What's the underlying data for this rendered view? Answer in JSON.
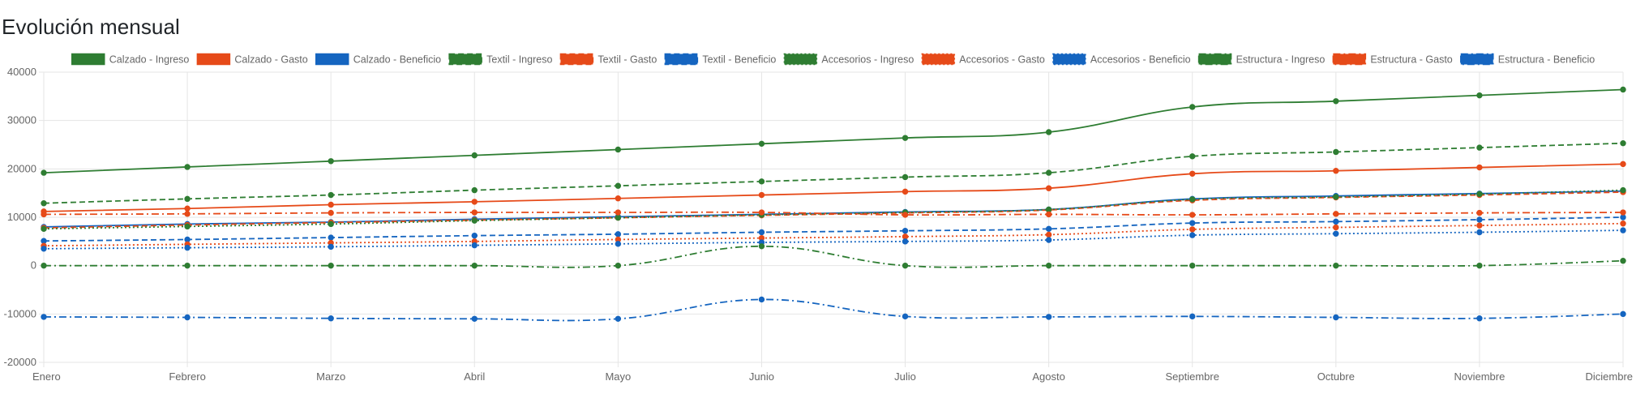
{
  "title": "Evolución mensual",
  "chart_data": {
    "type": "line",
    "categories": [
      "Enero",
      "Febrero",
      "Marzo",
      "Abril",
      "Mayo",
      "Junio",
      "Julio",
      "Agosto",
      "Septiembre",
      "Octubre",
      "Noviembre",
      "Diciembre"
    ],
    "ylim": [
      -20000,
      40000
    ],
    "yticks": [
      40000,
      30000,
      20000,
      10000,
      0,
      -10000,
      -20000
    ],
    "ytick_labels": [
      "40000",
      "30000",
      "20000",
      "10000",
      "0",
      "-10000",
      "-20000"
    ],
    "grid": true,
    "legend_position": "top",
    "series": [
      {
        "name": "Calzado - Ingreso",
        "color": "#2e7d32",
        "dash": "solid",
        "values": [
          19200,
          20400,
          21600,
          22800,
          24000,
          25200,
          26400,
          27600,
          32800,
          34000,
          35200,
          36400
        ]
      },
      {
        "name": "Calzado - Gasto",
        "color": "#e64a19",
        "dash": "solid",
        "values": [
          11200,
          11800,
          12600,
          13200,
          13900,
          14600,
          15300,
          16000,
          19000,
          19600,
          20300,
          21000
        ]
      },
      {
        "name": "Calzado - Beneficio",
        "color": "#1565c0",
        "dash": "solid",
        "values": [
          8000,
          8600,
          9000,
          9600,
          10100,
          10600,
          11100,
          11600,
          13800,
          14400,
          14900,
          15400
        ]
      },
      {
        "name": "Textil - Ingreso",
        "color": "#2e7d32",
        "dash": "dashed",
        "values": [
          12900,
          13800,
          14600,
          15600,
          16500,
          17400,
          18300,
          19200,
          22600,
          23500,
          24400,
          25300
        ]
      },
      {
        "name": "Textil - Gasto",
        "color": "#e64a19",
        "dash": "dashed",
        "values": [
          7800,
          8400,
          8900,
          9400,
          9900,
          10400,
          10900,
          11500,
          13500,
          14100,
          14600,
          15200
        ]
      },
      {
        "name": "Textil - Beneficio",
        "color": "#1565c0",
        "dash": "dashed",
        "values": [
          5100,
          5400,
          5800,
          6200,
          6500,
          6900,
          7200,
          7600,
          8800,
          9100,
          9500,
          10000
        ]
      },
      {
        "name": "Accesorios - Ingreso",
        "color": "#2e7d32",
        "dash": "dotted",
        "values": [
          7600,
          8100,
          8600,
          9300,
          9900,
          10500,
          11000,
          11600,
          13700,
          14200,
          14800,
          15600
        ]
      },
      {
        "name": "Accesorios - Gasto",
        "color": "#e64a19",
        "dash": "dotted",
        "values": [
          4100,
          4400,
          4700,
          5000,
          5400,
          5700,
          6000,
          6400,
          7500,
          7900,
          8300,
          8700
        ]
      },
      {
        "name": "Accesorios - Beneficio",
        "color": "#1565c0",
        "dash": "dotted",
        "values": [
          3500,
          3700,
          3900,
          4200,
          4500,
          4800,
          5000,
          5300,
          6300,
          6600,
          6900,
          7300
        ]
      },
      {
        "name": "Estructura - Ingreso",
        "color": "#2e7d32",
        "dash": "dashdot",
        "values": [
          0,
          0,
          0,
          0,
          0,
          4000,
          0,
          0,
          0,
          0,
          0,
          1000
        ]
      },
      {
        "name": "Estructura - Gasto",
        "color": "#e64a19",
        "dash": "dashdot",
        "values": [
          10600,
          10700,
          10900,
          11000,
          11000,
          11000,
          10500,
          10600,
          10500,
          10700,
          10900,
          11000
        ]
      },
      {
        "name": "Estructura - Beneficio",
        "color": "#1565c0",
        "dash": "dashdot",
        "values": [
          -10600,
          -10700,
          -10900,
          -11000,
          -11000,
          -7000,
          -10500,
          -10600,
          -10500,
          -10700,
          -10900,
          -10000
        ]
      }
    ]
  }
}
